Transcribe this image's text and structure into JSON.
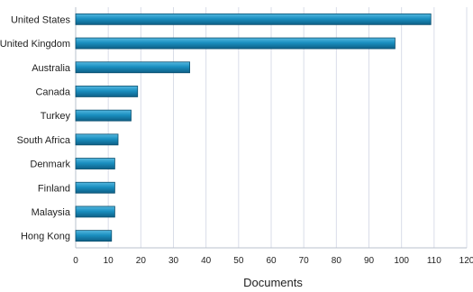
{
  "chart_data": {
    "type": "bar",
    "orientation": "horizontal",
    "categories": [
      "United States",
      "United Kingdom",
      "Australia",
      "Canada",
      "Turkey",
      "South Africa",
      "Denmark",
      "Finland",
      "Malaysia",
      "Hong Kong"
    ],
    "values": [
      109,
      98,
      35,
      19,
      17,
      13,
      12,
      12,
      12,
      11
    ],
    "xlabel": "Documents",
    "ylabel": "",
    "xlim": [
      0,
      120
    ],
    "xticks": [
      0,
      10,
      20,
      30,
      40,
      50,
      60,
      70,
      80,
      90,
      100,
      110,
      120
    ],
    "grid": "vertical",
    "bar_color": "#1a8fc0",
    "bar_color_dark": "#0e5f86"
  }
}
